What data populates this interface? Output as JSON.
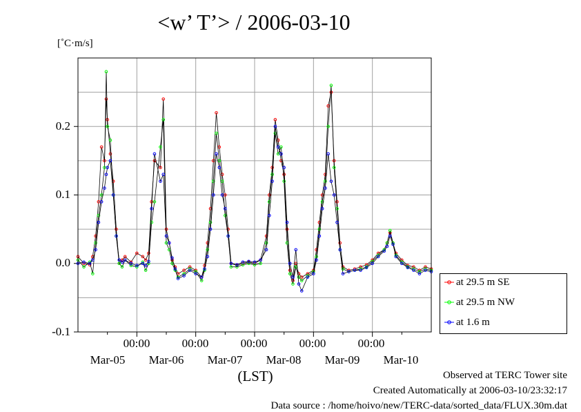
{
  "title": "<w’ T’> / 2006-03-10",
  "chart_data": {
    "type": "line",
    "title": "<w’ T’> / 2006-03-10",
    "ylabel": "[˚C·m/s]",
    "xlabel": "(LST)",
    "ylim": [
      -0.1,
      0.3
    ],
    "xlim_days": [
      0,
      6
    ],
    "yticks": [
      {
        "label": "0.2",
        "value": 0.2
      },
      {
        "label": "0.1",
        "value": 0.1
      },
      {
        "label": "0.0",
        "value": 0.0
      },
      {
        "label": "-0.1",
        "value": -0.1
      }
    ],
    "xtick_time_label": "00:00",
    "xtick_dates": [
      "Mar-05",
      "Mar-06",
      "Mar-07",
      "Mar-08",
      "Mar-09",
      "Mar-10"
    ],
    "grid": true,
    "legend_position": "lower-right outside",
    "series": [
      {
        "name": "at 29.5 m SE",
        "color": "#ff0000",
        "points": [
          [
            0,
            0.01
          ],
          [
            0.1,
            0.0
          ],
          [
            0.2,
            -0.002
          ],
          [
            0.25,
            0.01
          ],
          [
            0.3,
            0.04
          ],
          [
            0.35,
            0.09
          ],
          [
            0.4,
            0.17
          ],
          [
            0.45,
            0.15
          ],
          [
            0.48,
            0.24
          ],
          [
            0.5,
            0.21
          ],
          [
            0.55,
            0.16
          ],
          [
            0.6,
            0.12
          ],
          [
            0.65,
            0.05
          ],
          [
            0.7,
            0.0
          ],
          [
            0.75,
            0.005
          ],
          [
            0.8,
            0.01
          ],
          [
            0.9,
            0.002
          ],
          [
            1.0,
            0.015
          ],
          [
            1.1,
            0.01
          ],
          [
            1.15,
            0.005
          ],
          [
            1.2,
            0.015
          ],
          [
            1.25,
            0.09
          ],
          [
            1.3,
            0.15
          ],
          [
            1.4,
            0.14
          ],
          [
            1.45,
            0.24
          ],
          [
            1.5,
            0.05
          ],
          [
            1.55,
            0.03
          ],
          [
            1.6,
            0.005
          ],
          [
            1.65,
            -0.005
          ],
          [
            1.7,
            -0.015
          ],
          [
            1.8,
            -0.01
          ],
          [
            1.9,
            -0.005
          ],
          [
            2.0,
            -0.01
          ],
          [
            2.1,
            -0.02
          ],
          [
            2.15,
            -0.003
          ],
          [
            2.2,
            0.03
          ],
          [
            2.25,
            0.08
          ],
          [
            2.3,
            0.15
          ],
          [
            2.35,
            0.22
          ],
          [
            2.4,
            0.17
          ],
          [
            2.45,
            0.13
          ],
          [
            2.5,
            0.1
          ],
          [
            2.55,
            0.05
          ],
          [
            2.6,
            0.0
          ],
          [
            2.7,
            -0.003
          ],
          [
            2.8,
            0.0
          ],
          [
            2.9,
            0.002
          ],
          [
            3.0,
            0.0
          ],
          [
            3.1,
            0.005
          ],
          [
            3.2,
            0.04
          ],
          [
            3.25,
            0.1
          ],
          [
            3.3,
            0.14
          ],
          [
            3.35,
            0.21
          ],
          [
            3.4,
            0.18
          ],
          [
            3.45,
            0.15
          ],
          [
            3.5,
            0.13
          ],
          [
            3.55,
            0.05
          ],
          [
            3.6,
            -0.01
          ],
          [
            3.65,
            -0.025
          ],
          [
            3.7,
            0.0
          ],
          [
            3.75,
            -0.015
          ],
          [
            3.8,
            -0.02
          ],
          [
            3.9,
            -0.015
          ],
          [
            4.0,
            -0.01
          ],
          [
            4.05,
            0.02
          ],
          [
            4.1,
            0.06
          ],
          [
            4.15,
            0.1
          ],
          [
            4.2,
            0.13
          ],
          [
            4.25,
            0.23
          ],
          [
            4.3,
            0.25
          ],
          [
            4.35,
            0.15
          ],
          [
            4.4,
            0.09
          ],
          [
            4.45,
            0.03
          ],
          [
            4.5,
            -0.005
          ],
          [
            4.6,
            -0.01
          ],
          [
            4.7,
            -0.008
          ],
          [
            4.8,
            -0.005
          ],
          [
            4.9,
            -0.002
          ],
          [
            5.0,
            0.005
          ],
          [
            5.1,
            0.015
          ],
          [
            5.2,
            0.02
          ],
          [
            5.25,
            0.03
          ],
          [
            5.3,
            0.045
          ],
          [
            5.35,
            0.03
          ],
          [
            5.4,
            0.015
          ],
          [
            5.5,
            0.005
          ],
          [
            5.6,
            -0.003
          ],
          [
            5.7,
            -0.005
          ],
          [
            5.8,
            -0.01
          ],
          [
            5.9,
            -0.005
          ],
          [
            6.0,
            -0.008
          ]
        ]
      },
      {
        "name": "at 29.5 m NW",
        "color": "#00ff00",
        "points": [
          [
            0,
            0.005
          ],
          [
            0.1,
            -0.005
          ],
          [
            0.2,
            0.002
          ],
          [
            0.25,
            -0.015
          ],
          [
            0.3,
            0.03
          ],
          [
            0.35,
            0.07
          ],
          [
            0.4,
            0.1
          ],
          [
            0.45,
            0.14
          ],
          [
            0.48,
            0.28
          ],
          [
            0.5,
            0.2
          ],
          [
            0.55,
            0.18
          ],
          [
            0.6,
            0.1
          ],
          [
            0.65,
            0.04
          ],
          [
            0.7,
            0.0
          ],
          [
            0.75,
            -0.005
          ],
          [
            0.8,
            0.005
          ],
          [
            0.9,
            -0.003
          ],
          [
            1.0,
            -0.005
          ],
          [
            1.1,
            0.002
          ],
          [
            1.15,
            -0.01
          ],
          [
            1.2,
            0.0
          ],
          [
            1.25,
            0.06
          ],
          [
            1.3,
            0.09
          ],
          [
            1.4,
            0.17
          ],
          [
            1.45,
            0.21
          ],
          [
            1.5,
            0.03
          ],
          [
            1.55,
            0.02
          ],
          [
            1.6,
            0.0
          ],
          [
            1.65,
            -0.01
          ],
          [
            1.7,
            -0.02
          ],
          [
            1.8,
            -0.015
          ],
          [
            1.9,
            -0.008
          ],
          [
            2.0,
            -0.012
          ],
          [
            2.1,
            -0.025
          ],
          [
            2.15,
            -0.01
          ],
          [
            2.2,
            0.02
          ],
          [
            2.25,
            0.06
          ],
          [
            2.3,
            0.12
          ],
          [
            2.35,
            0.19
          ],
          [
            2.4,
            0.15
          ],
          [
            2.45,
            0.12
          ],
          [
            2.5,
            0.07
          ],
          [
            2.55,
            0.04
          ],
          [
            2.6,
            -0.005
          ],
          [
            2.7,
            -0.005
          ],
          [
            2.8,
            -0.002
          ],
          [
            2.9,
            0.0
          ],
          [
            3.0,
            -0.002
          ],
          [
            3.1,
            0.0
          ],
          [
            3.2,
            0.03
          ],
          [
            3.25,
            0.09
          ],
          [
            3.3,
            0.13
          ],
          [
            3.35,
            0.19
          ],
          [
            3.4,
            0.16
          ],
          [
            3.45,
            0.17
          ],
          [
            3.5,
            0.12
          ],
          [
            3.55,
            0.03
          ],
          [
            3.6,
            -0.015
          ],
          [
            3.65,
            -0.03
          ],
          [
            3.7,
            -0.005
          ],
          [
            3.75,
            -0.02
          ],
          [
            3.8,
            -0.025
          ],
          [
            3.9,
            -0.018
          ],
          [
            4.0,
            -0.012
          ],
          [
            4.05,
            0.01
          ],
          [
            4.1,
            0.05
          ],
          [
            4.15,
            0.09
          ],
          [
            4.2,
            0.12
          ],
          [
            4.25,
            0.2
          ],
          [
            4.3,
            0.26
          ],
          [
            4.35,
            0.14
          ],
          [
            4.4,
            0.08
          ],
          [
            4.45,
            0.02
          ],
          [
            4.5,
            -0.008
          ],
          [
            4.6,
            -0.012
          ],
          [
            4.7,
            -0.01
          ],
          [
            4.8,
            -0.008
          ],
          [
            4.9,
            -0.005
          ],
          [
            5.0,
            0.003
          ],
          [
            5.1,
            0.012
          ],
          [
            5.2,
            0.02
          ],
          [
            5.25,
            0.03
          ],
          [
            5.3,
            0.048
          ],
          [
            5.35,
            0.03
          ],
          [
            5.4,
            0.012
          ],
          [
            5.5,
            0.002
          ],
          [
            5.6,
            -0.005
          ],
          [
            5.7,
            -0.008
          ],
          [
            5.8,
            -0.012
          ],
          [
            5.9,
            -0.008
          ],
          [
            6.0,
            -0.01
          ]
        ]
      },
      {
        "name": "at 1.6 m",
        "color": "#0000ff",
        "points": [
          [
            0,
            0.0
          ],
          [
            0.1,
            0.002
          ],
          [
            0.2,
            0.0
          ],
          [
            0.25,
            0.005
          ],
          [
            0.3,
            0.02
          ],
          [
            0.35,
            0.06
          ],
          [
            0.4,
            0.09
          ],
          [
            0.45,
            0.11
          ],
          [
            0.48,
            0.13
          ],
          [
            0.5,
            0.14
          ],
          [
            0.55,
            0.15
          ],
          [
            0.6,
            0.1
          ],
          [
            0.65,
            0.04
          ],
          [
            0.7,
            0.005
          ],
          [
            0.75,
            0.002
          ],
          [
            0.8,
            0.005
          ],
          [
            0.9,
            0.0
          ],
          [
            1.0,
            -0.003
          ],
          [
            1.1,
            0.0
          ],
          [
            1.15,
            -0.003
          ],
          [
            1.2,
            0.003
          ],
          [
            1.25,
            0.08
          ],
          [
            1.3,
            0.16
          ],
          [
            1.4,
            0.12
          ],
          [
            1.45,
            0.13
          ],
          [
            1.5,
            0.04
          ],
          [
            1.55,
            0.03
          ],
          [
            1.6,
            0.008
          ],
          [
            1.65,
            -0.008
          ],
          [
            1.7,
            -0.022
          ],
          [
            1.8,
            -0.018
          ],
          [
            1.9,
            -0.01
          ],
          [
            2.0,
            -0.015
          ],
          [
            2.1,
            -0.02
          ],
          [
            2.15,
            -0.008
          ],
          [
            2.2,
            0.01
          ],
          [
            2.25,
            0.05
          ],
          [
            2.3,
            0.1
          ],
          [
            2.35,
            0.16
          ],
          [
            2.4,
            0.14
          ],
          [
            2.45,
            0.1
          ],
          [
            2.5,
            0.08
          ],
          [
            2.55,
            0.04
          ],
          [
            2.6,
            0.0
          ],
          [
            2.7,
            -0.002
          ],
          [
            2.8,
            0.002
          ],
          [
            2.9,
            0.003
          ],
          [
            3.0,
            0.002
          ],
          [
            3.1,
            0.005
          ],
          [
            3.2,
            0.02
          ],
          [
            3.25,
            0.07
          ],
          [
            3.3,
            0.12
          ],
          [
            3.35,
            0.2
          ],
          [
            3.4,
            0.17
          ],
          [
            3.45,
            0.16
          ],
          [
            3.5,
            0.14
          ],
          [
            3.55,
            0.06
          ],
          [
            3.6,
            0.0
          ],
          [
            3.65,
            -0.02
          ],
          [
            3.7,
            0.02
          ],
          [
            3.75,
            -0.03
          ],
          [
            3.8,
            -0.04
          ],
          [
            3.9,
            -0.02
          ],
          [
            4.0,
            -0.015
          ],
          [
            4.05,
            0.005
          ],
          [
            4.1,
            0.04
          ],
          [
            4.15,
            0.08
          ],
          [
            4.2,
            0.11
          ],
          [
            4.25,
            0.16
          ],
          [
            4.3,
            0.12
          ],
          [
            4.35,
            0.1
          ],
          [
            4.4,
            0.06
          ],
          [
            4.45,
            0.02
          ],
          [
            4.5,
            -0.015
          ],
          [
            4.6,
            -0.012
          ],
          [
            4.7,
            -0.01
          ],
          [
            4.8,
            -0.01
          ],
          [
            4.9,
            -0.006
          ],
          [
            5.0,
            0.0
          ],
          [
            5.1,
            0.01
          ],
          [
            5.2,
            0.018
          ],
          [
            5.25,
            0.025
          ],
          [
            5.3,
            0.04
          ],
          [
            5.35,
            0.028
          ],
          [
            5.4,
            0.01
          ],
          [
            5.5,
            0.0
          ],
          [
            5.6,
            -0.006
          ],
          [
            5.7,
            -0.01
          ],
          [
            5.8,
            -0.015
          ],
          [
            5.9,
            -0.01
          ],
          [
            6.0,
            -0.012
          ]
        ]
      }
    ]
  },
  "footer": {
    "line1": "Observed at TERC Tower site",
    "line2": "Created Automatically at 2006-03-10/23:32:17",
    "line3": "Data source : /home/hoivo/new/TERC-data/sorted_data/FLUX.30m.dat"
  }
}
